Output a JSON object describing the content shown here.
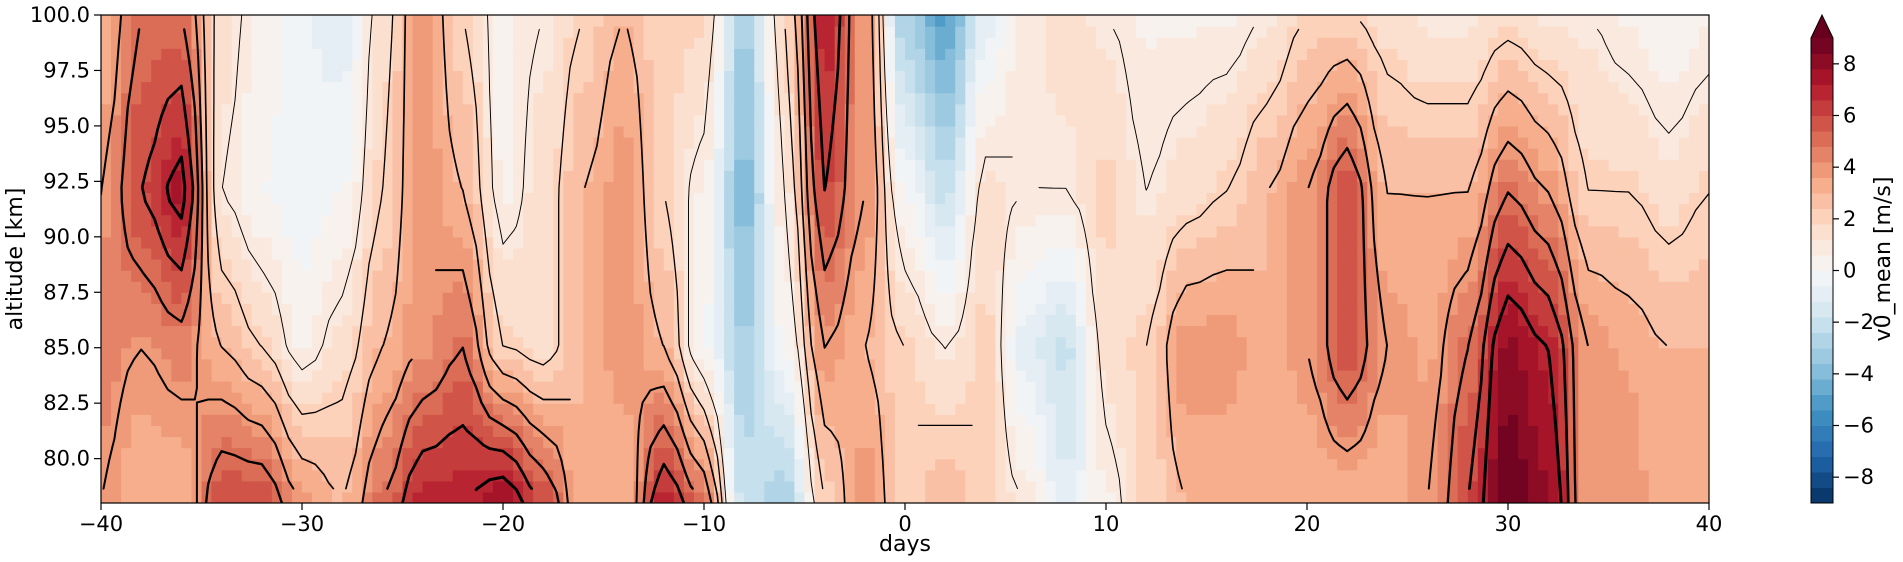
{
  "chart_data": {
    "type": "heatmap",
    "xlabel": "days",
    "ylabel": "altitude [km]",
    "xlim": [
      -40,
      40
    ],
    "ylim": [
      78,
      100
    ],
    "x_ticks": [
      -40,
      -30,
      -20,
      -10,
      0,
      10,
      20,
      30,
      40
    ],
    "x_tick_labels": [
      "−40",
      "−30",
      "−20",
      "−10",
      "0",
      "10",
      "20",
      "30",
      "40"
    ],
    "y_ticks": [
      80,
      82.5,
      85,
      87.5,
      90,
      92.5,
      95,
      97.5,
      100
    ],
    "y_tick_labels": [
      "80.0",
      "82.5",
      "85.0",
      "87.5",
      "90.0",
      "92.5",
      "95.0",
      "97.5",
      "100.0"
    ],
    "colorbar": {
      "label": "v0_mean [m/s]",
      "colormap": "RdBu_r",
      "range": [
        -9,
        9
      ],
      "extend": "max",
      "ticks": [
        -8,
        -6,
        -4,
        -2,
        0,
        2,
        4,
        6,
        8
      ],
      "tick_labels": [
        "−8",
        "−6",
        "−4",
        "−2",
        "0",
        "2",
        "4",
        "6",
        "8"
      ]
    },
    "colors": {
      "negative": "#053061",
      "zero": "#f7f7f7",
      "positive": "#67001f"
    },
    "grid": false,
    "bands": [
      {
        "day": -40,
        "values": {
          "78": 4,
          "85": 4.5,
          "92": 4,
          "100": 3
        }
      },
      {
        "day": -38,
        "values": {
          "78": 3,
          "85": 4,
          "92": 6,
          "100": 5
        }
      },
      {
        "day": -36,
        "values": {
          "78": 3,
          "85": 4.5,
          "92": 7.5,
          "100": 5
        }
      },
      {
        "day": -34,
        "values": {
          "78": 6,
          "85": 3,
          "92": 1,
          "100": 1.5
        }
      },
      {
        "day": -32,
        "values": {
          "78": 6,
          "85": 2,
          "92": 0,
          "100": 0.5
        }
      },
      {
        "day": -30,
        "values": {
          "78": 4,
          "85": 0.5,
          "92": -0.5,
          "100": -0.5
        }
      },
      {
        "day": -28,
        "values": {
          "78": 3,
          "85": 1.5,
          "92": 0,
          "100": -1
        }
      },
      {
        "day": -26,
        "values": {
          "78": 5,
          "85": 3,
          "92": 2,
          "100": 1.5
        }
      },
      {
        "day": -24,
        "values": {
          "78": 7,
          "85": 4,
          "92": 4,
          "100": 4
        }
      },
      {
        "day": -22,
        "values": {
          "78": 7,
          "85": 5,
          "92": 3,
          "100": 2
        }
      },
      {
        "day": -20,
        "values": {
          "78": 8,
          "85": 2,
          "92": 0.5,
          "100": 0.5
        }
      },
      {
        "day": -18,
        "values": {
          "78": 6,
          "85": 1.5,
          "92": 1.5,
          "100": 1
        }
      },
      {
        "day": -16,
        "values": {
          "78": 3,
          "85": 3,
          "92": 3,
          "100": 2
        }
      },
      {
        "day": -14,
        "values": {
          "78": 3,
          "85": 4,
          "92": 4,
          "100": 3
        }
      },
      {
        "day": -12,
        "values": {
          "78": 7,
          "85": 3,
          "92": 2,
          "100": 2
        }
      },
      {
        "day": -10,
        "values": {
          "78": 5,
          "85": 0,
          "92": 0.5,
          "100": 2
        }
      },
      {
        "day": -8,
        "values": {
          "78": -2,
          "85": -3,
          "92": -4,
          "100": -3
        }
      },
      {
        "day": -6,
        "values": {
          "78": -3,
          "85": 0,
          "92": 1,
          "100": 2
        }
      },
      {
        "day": -4,
        "values": {
          "78": 2,
          "85": 4,
          "92": 6,
          "100": 7
        }
      },
      {
        "day": -2,
        "values": {
          "78": 4,
          "85": 3,
          "92": 4,
          "100": 4
        }
      },
      {
        "day": 0,
        "values": {
          "78": 2,
          "85": 2,
          "92": 0,
          "100": -3
        }
      },
      {
        "day": 2,
        "values": {
          "78": 3,
          "85": 1,
          "92": -2,
          "100": -5
        }
      },
      {
        "day": 4,
        "values": {
          "78": 2,
          "85": 2,
          "92": 1.5,
          "100": -1
        }
      },
      {
        "day": 6,
        "values": {
          "78": 1,
          "85": -1,
          "92": 1,
          "100": 1
        }
      },
      {
        "day": 8,
        "values": {
          "78": -1,
          "85": -2,
          "92": 1,
          "100": 1.5
        }
      },
      {
        "day": 10,
        "values": {
          "78": 0.5,
          "85": 1.5,
          "92": 2,
          "100": 1
        }
      },
      {
        "day": 12,
        "values": {
          "78": 2,
          "85": 2,
          "92": 1,
          "100": 0.5
        }
      },
      {
        "day": 14,
        "values": {
          "78": 3,
          "85": 4,
          "92": 1.5,
          "100": 0.5
        }
      },
      {
        "day": 16,
        "values": {
          "78": 3,
          "85": 4,
          "92": 2,
          "100": 0.5
        }
      },
      {
        "day": 18,
        "values": {
          "78": 3,
          "85": 3,
          "92": 3,
          "100": 1
        }
      },
      {
        "day": 20,
        "values": {
          "78": 3,
          "85": 4,
          "92": 4,
          "100": 2
        }
      },
      {
        "day": 22,
        "values": {
          "78": 3,
          "85": 6,
          "92": 6,
          "100": 2
        }
      },
      {
        "day": 24,
        "values": {
          "78": 3,
          "85": 4,
          "92": 3,
          "100": 1.5
        }
      },
      {
        "day": 26,
        "values": {
          "78": 4,
          "85": 3.5,
          "92": 3,
          "100": 1
        }
      },
      {
        "day": 28,
        "values": {
          "78": 6,
          "85": 5,
          "92": 3,
          "100": 1
        }
      },
      {
        "day": 30,
        "values": {
          "78": 9,
          "85": 8,
          "92": 5,
          "100": 1.5
        }
      },
      {
        "day": 32,
        "values": {
          "78": 8,
          "85": 7,
          "92": 4,
          "100": 1
        }
      },
      {
        "day": 34,
        "values": {
          "78": 4,
          "85": 4,
          "92": 2,
          "100": 1
        }
      },
      {
        "day": 36,
        "values": {
          "78": 4,
          "85": 3.5,
          "92": 2,
          "100": 0.5
        }
      },
      {
        "day": 38,
        "values": {
          "78": 3,
          "85": 3,
          "92": 1.5,
          "100": 0
        }
      },
      {
        "day": 40,
        "values": {
          "78": 3,
          "85": 3,
          "92": 2,
          "100": 0.5
        }
      }
    ]
  }
}
